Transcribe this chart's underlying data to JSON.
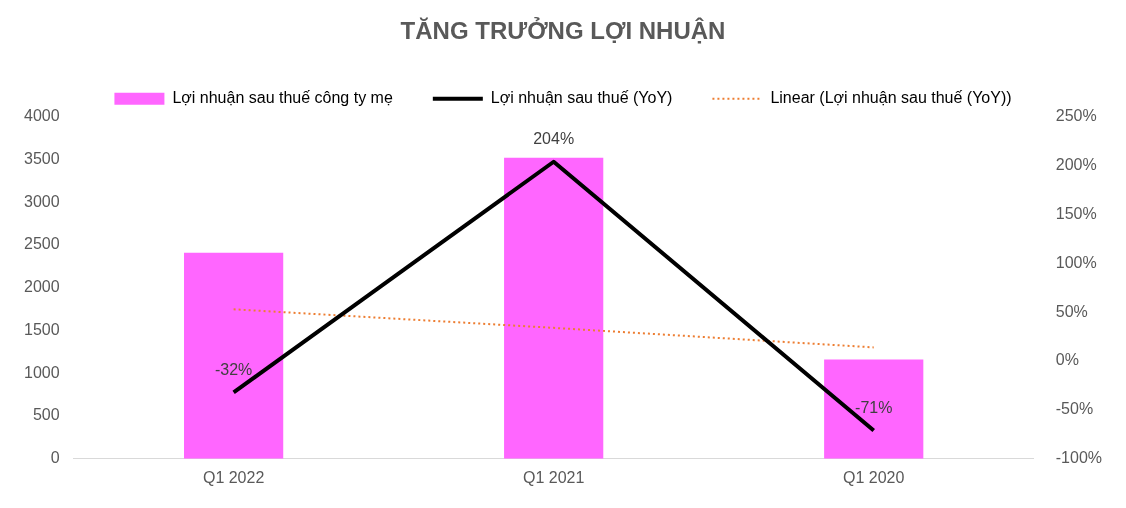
{
  "chart_data": {
    "type": "bar",
    "title": "TĂNG TRƯỞNG LỢI NHUẬN",
    "categories": [
      "Q1 2022",
      "Q1 2021",
      "Q1 2020"
    ],
    "series": [
      {
        "name": "Lợi nhuận sau thuế công ty mẹ",
        "color": "#ff66ff",
        "values": [
          2410,
          3520,
          1160
        ]
      },
      {
        "name": "Lợi nhuận sau thuế (YoY)",
        "type": "line",
        "axis": "y2",
        "color": "#000000",
        "values": [
          -32,
          204,
          -71
        ],
        "value_labels": [
          "-32%",
          "204%",
          "-71%"
        ],
        "line_style": "solid"
      },
      {
        "name": "Linear (Lợi nhuận sau thuế (YoY))",
        "type": "line",
        "axis": "y2",
        "color": "#ed7d31",
        "values": [
          53,
          34,
          14
        ],
        "line_style": "dotted"
      }
    ],
    "ylim": [
      0,
      4000
    ],
    "yticks": [
      0,
      500,
      1000,
      1500,
      2000,
      2500,
      3000,
      3500,
      4000
    ],
    "y2lim": [
      -100,
      250
    ],
    "y2ticks": [
      {
        "value": -100,
        "label": "-100%"
      },
      {
        "value": -50,
        "label": "-50%"
      },
      {
        "value": 0,
        "label": "0%"
      },
      {
        "value": 50,
        "label": "50%"
      },
      {
        "value": 100,
        "label": "100%"
      },
      {
        "value": 150,
        "label": "150%"
      },
      {
        "value": 200,
        "label": "200%"
      },
      {
        "value": 250,
        "label": "250%"
      }
    ],
    "grid": false,
    "legend": "top",
    "marker": "none"
  }
}
